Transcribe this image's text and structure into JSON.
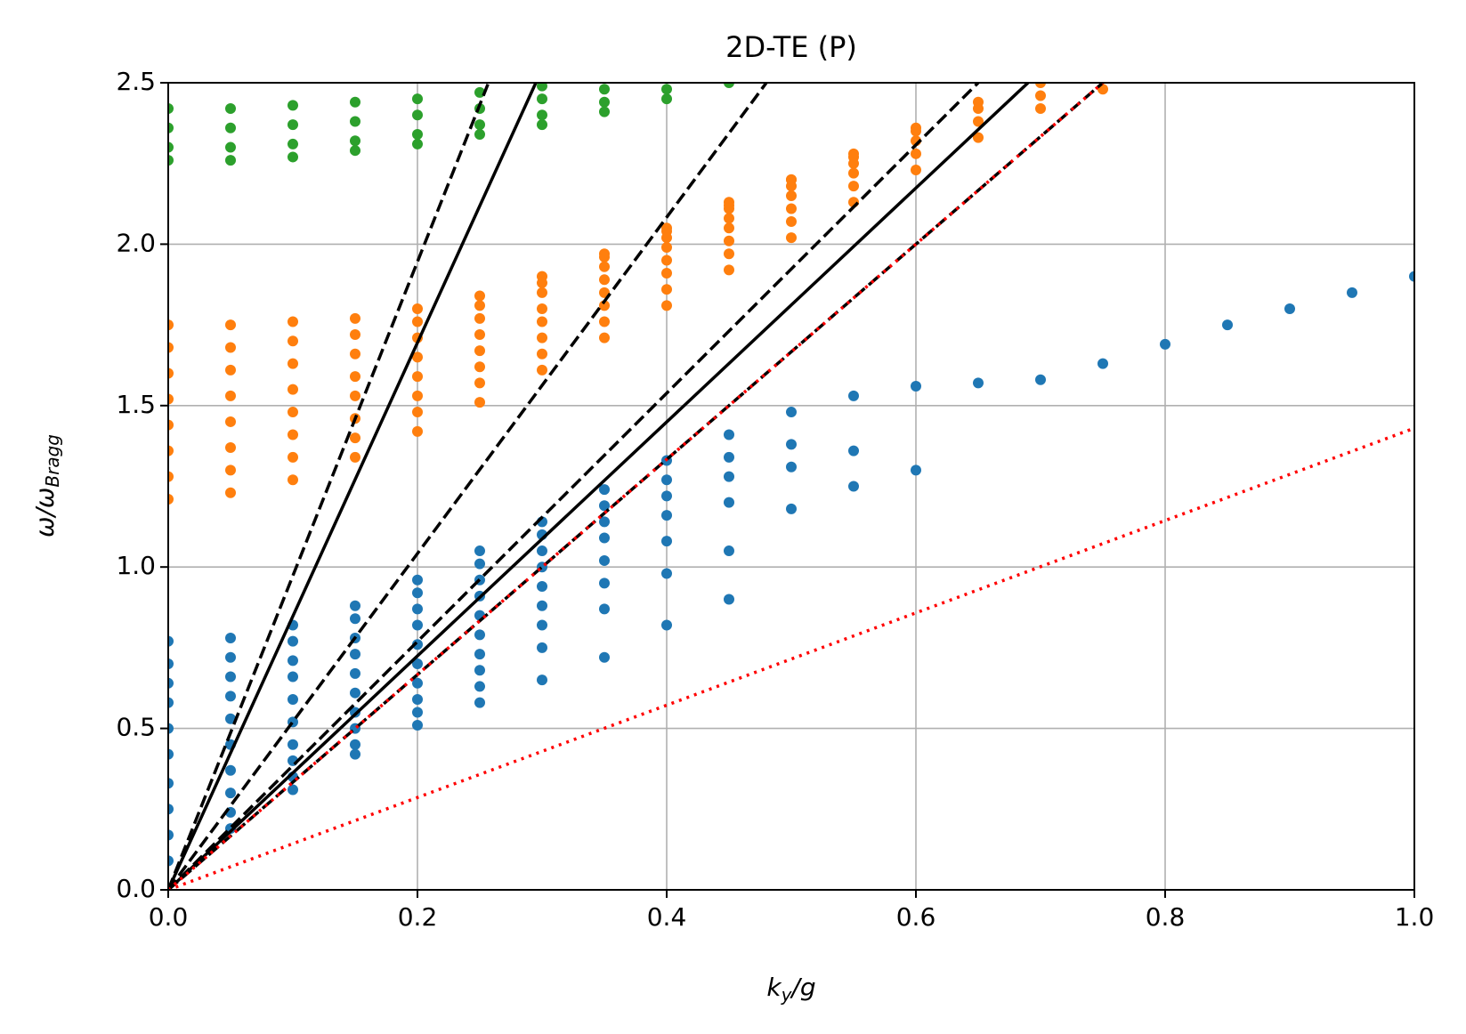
{
  "chart_data": {
    "type": "scatter",
    "title": "2D-TE (P)",
    "xlabel": [
      "k",
      "y",
      "/g"
    ],
    "ylabel": [
      "ω/ω",
      "Bragg"
    ],
    "xlim": [
      0,
      1
    ],
    "ylim": [
      0,
      2.5
    ],
    "xticks": [
      {
        "value": 0,
        "label": "0.0"
      },
      0.2,
      0.4,
      0.6,
      0.8,
      {
        "value": 1,
        "label": "1.0"
      }
    ],
    "yticks": [
      {
        "value": 0,
        "label": "0.0"
      },
      0.5,
      {
        "value": 1,
        "label": "1.0"
      },
      1.5,
      {
        "value": 2,
        "label": "2.0"
      },
      2.5
    ],
    "grid": true,
    "series": [
      {
        "type": "scatter",
        "color": "#1f77b4",
        "x": [
          0,
          0.05,
          0.1,
          0.15,
          0.2,
          0.25,
          0.3,
          0.35,
          0.4,
          0.45,
          0.5,
          0.55,
          0.6,
          0.65,
          0.7,
          0.75,
          0.8,
          0.85,
          0.9,
          0.95,
          1.0
        ],
        "values": [
          0.77,
          0.78,
          0.82,
          0.88,
          0.96,
          1.05,
          1.14,
          1.24,
          1.33,
          1.41,
          1.48,
          1.53,
          1.56,
          1.57,
          1.58,
          1.63,
          1.69,
          1.75,
          1.8,
          1.85,
          1.9
        ]
      },
      {
        "type": "scatter",
        "color": "#1f77b4",
        "x": [
          0,
          0.05,
          0.1,
          0.15,
          0.2,
          0.25,
          0.3,
          0.35,
          0.4,
          0.45,
          0.5,
          0.55,
          0.6
        ],
        "values": [
          0.7,
          0.72,
          0.77,
          0.84,
          0.92,
          1.01,
          1.1,
          1.19,
          1.27,
          1.34,
          1.38,
          1.36,
          1.3
        ]
      },
      {
        "type": "scatter",
        "color": "#1f77b4",
        "x": [
          0,
          0.05,
          0.1,
          0.15,
          0.2,
          0.25,
          0.3,
          0.35,
          0.4,
          0.45,
          0.5,
          0.55
        ],
        "values": [
          0.64,
          0.66,
          0.71,
          0.78,
          0.87,
          0.96,
          1.05,
          1.14,
          1.22,
          1.28,
          1.31,
          1.25
        ]
      },
      {
        "type": "scatter",
        "color": "#1f77b4",
        "x": [
          0,
          0.05,
          0.1,
          0.15,
          0.2,
          0.25,
          0.3,
          0.35,
          0.4,
          0.45,
          0.5
        ],
        "values": [
          0.58,
          0.6,
          0.66,
          0.73,
          0.82,
          0.91,
          1.0,
          1.09,
          1.16,
          1.2,
          1.18
        ]
      },
      {
        "type": "scatter",
        "color": "#1f77b4",
        "x": [
          0,
          0.05,
          0.1,
          0.15,
          0.2,
          0.25,
          0.3,
          0.35,
          0.4,
          0.45
        ],
        "values": [
          0.5,
          0.53,
          0.59,
          0.67,
          0.76,
          0.85,
          0.94,
          1.02,
          1.08,
          1.05
        ]
      },
      {
        "type": "scatter",
        "color": "#1f77b4",
        "x": [
          0,
          0.05,
          0.1,
          0.15,
          0.2,
          0.25,
          0.3,
          0.35,
          0.4,
          0.45
        ],
        "values": [
          0.42,
          0.45,
          0.52,
          0.61,
          0.7,
          0.79,
          0.88,
          0.95,
          0.98,
          0.9
        ]
      },
      {
        "type": "scatter",
        "color": "#1f77b4",
        "x": [
          0,
          0.05,
          0.1,
          0.15,
          0.2,
          0.25,
          0.3,
          0.35,
          0.4
        ],
        "values": [
          0.33,
          0.37,
          0.45,
          0.55,
          0.64,
          0.73,
          0.82,
          0.87,
          0.82
        ]
      },
      {
        "type": "scatter",
        "color": "#1f77b4",
        "x": [
          0,
          0.05,
          0.1,
          0.15,
          0.2,
          0.25,
          0.3,
          0.35
        ],
        "values": [
          0.25,
          0.3,
          0.4,
          0.5,
          0.59,
          0.68,
          0.75,
          0.72
        ]
      },
      {
        "type": "scatter",
        "color": "#1f77b4",
        "x": [
          0,
          0.05,
          0.1,
          0.15,
          0.2,
          0.25,
          0.3
        ],
        "values": [
          0.17,
          0.24,
          0.35,
          0.45,
          0.55,
          0.63,
          0.65
        ]
      },
      {
        "type": "scatter",
        "color": "#1f77b4",
        "x": [
          0,
          0.05,
          0.1,
          0.15,
          0.2,
          0.25
        ],
        "values": [
          0.09,
          0.19,
          0.31,
          0.42,
          0.51,
          0.58
        ]
      },
      {
        "type": "scatter",
        "color": "#ff7f0e",
        "x": [
          0,
          0.05,
          0.1,
          0.15,
          0.2,
          0.25,
          0.3,
          0.35,
          0.4,
          0.45
        ],
        "values": [
          1.75,
          1.75,
          1.76,
          1.77,
          1.8,
          1.84,
          1.9,
          1.97,
          2.05,
          2.13
        ]
      },
      {
        "type": "scatter",
        "color": "#ff7f0e",
        "x": [
          0,
          0.05,
          0.1,
          0.15,
          0.2,
          0.25,
          0.3,
          0.35,
          0.4,
          0.45,
          0.5
        ],
        "values": [
          1.68,
          1.68,
          1.7,
          1.72,
          1.76,
          1.81,
          1.88,
          1.96,
          2.04,
          2.12,
          2.2
        ]
      },
      {
        "type": "scatter",
        "color": "#ff7f0e",
        "x": [
          0,
          0.05,
          0.1,
          0.15,
          0.2,
          0.25,
          0.3,
          0.35,
          0.4,
          0.45,
          0.5,
          0.55
        ],
        "values": [
          1.6,
          1.61,
          1.63,
          1.66,
          1.71,
          1.77,
          1.85,
          1.93,
          2.02,
          2.11,
          2.2,
          2.28
        ]
      },
      {
        "type": "scatter",
        "color": "#ff7f0e",
        "x": [
          0,
          0.05,
          0.1,
          0.15,
          0.2,
          0.25,
          0.3,
          0.35,
          0.4,
          0.45,
          0.5,
          0.55,
          0.6
        ],
        "values": [
          1.52,
          1.53,
          1.55,
          1.59,
          1.65,
          1.72,
          1.8,
          1.89,
          1.99,
          2.08,
          2.18,
          2.27,
          2.36
        ]
      },
      {
        "type": "scatter",
        "color": "#ff7f0e",
        "x": [
          0,
          0.05,
          0.1,
          0.15,
          0.2,
          0.25,
          0.3,
          0.35,
          0.4,
          0.45,
          0.5,
          0.55,
          0.6,
          0.65
        ],
        "values": [
          1.44,
          1.45,
          1.48,
          1.53,
          1.59,
          1.67,
          1.76,
          1.85,
          1.95,
          2.05,
          2.15,
          2.25,
          2.35,
          2.44
        ]
      },
      {
        "type": "scatter",
        "color": "#ff7f0e",
        "x": [
          0,
          0.05,
          0.1,
          0.15,
          0.2,
          0.25,
          0.3,
          0.35,
          0.4,
          0.45,
          0.5,
          0.55,
          0.6,
          0.65,
          0.7
        ],
        "values": [
          1.36,
          1.37,
          1.41,
          1.46,
          1.53,
          1.62,
          1.71,
          1.81,
          1.91,
          2.01,
          2.11,
          2.22,
          2.32,
          2.42,
          2.5
        ]
      },
      {
        "type": "scatter",
        "color": "#ff7f0e",
        "x": [
          0,
          0.05,
          0.1,
          0.15,
          0.2,
          0.25,
          0.3,
          0.35,
          0.4,
          0.45,
          0.5,
          0.55,
          0.6,
          0.65,
          0.7
        ],
        "values": [
          1.28,
          1.3,
          1.34,
          1.4,
          1.48,
          1.57,
          1.66,
          1.76,
          1.86,
          1.97,
          2.07,
          2.18,
          2.28,
          2.38,
          2.46
        ]
      },
      {
        "type": "scatter",
        "color": "#ff7f0e",
        "x": [
          0,
          0.05,
          0.1,
          0.15,
          0.2,
          0.25,
          0.3,
          0.35,
          0.4,
          0.45,
          0.5,
          0.55,
          0.6,
          0.65,
          0.7,
          0.75
        ],
        "values": [
          1.21,
          1.23,
          1.27,
          1.34,
          1.42,
          1.51,
          1.61,
          1.71,
          1.81,
          1.92,
          2.02,
          2.13,
          2.23,
          2.33,
          2.42,
          2.48
        ]
      },
      {
        "type": "scatter",
        "color": "#2ca02c",
        "x": [
          0,
          0.05,
          0.1,
          0.15,
          0.2,
          0.25,
          0.3
        ],
        "values": [
          2.42,
          2.42,
          2.43,
          2.44,
          2.45,
          2.47,
          2.49
        ]
      },
      {
        "type": "scatter",
        "color": "#2ca02c",
        "x": [
          0,
          0.05,
          0.1,
          0.15,
          0.2,
          0.25,
          0.3,
          0.35
        ],
        "values": [
          2.36,
          2.36,
          2.37,
          2.38,
          2.4,
          2.42,
          2.45,
          2.48
        ]
      },
      {
        "type": "scatter",
        "color": "#2ca02c",
        "x": [
          0,
          0.05,
          0.1,
          0.15,
          0.2,
          0.25,
          0.3,
          0.35,
          0.4
        ],
        "values": [
          2.3,
          2.3,
          2.31,
          2.32,
          2.34,
          2.37,
          2.4,
          2.44,
          2.48
        ]
      },
      {
        "type": "scatter",
        "color": "#2ca02c",
        "x": [
          0,
          0.05,
          0.1,
          0.15,
          0.2,
          0.25,
          0.3,
          0.35,
          0.4,
          0.45
        ],
        "values": [
          2.26,
          2.26,
          2.27,
          2.29,
          2.31,
          2.34,
          2.37,
          2.41,
          2.45,
          2.5
        ]
      },
      {
        "type": "line",
        "color": "#000000",
        "dash": "dashed",
        "x": [
          0,
          0.257
        ],
        "values": [
          0,
          2.5
        ]
      },
      {
        "type": "line",
        "color": "#000000",
        "dash": "solid",
        "x": [
          0,
          0.295
        ],
        "values": [
          0,
          2.5
        ]
      },
      {
        "type": "line",
        "color": "#000000",
        "dash": "dashed",
        "x": [
          0,
          0.48
        ],
        "values": [
          0,
          2.5
        ]
      },
      {
        "type": "line",
        "color": "#000000",
        "dash": "dashed",
        "x": [
          0,
          0.65
        ],
        "values": [
          0,
          2.5
        ]
      },
      {
        "type": "line",
        "color": "#000000",
        "dash": "solid",
        "x": [
          0,
          0.69
        ],
        "values": [
          0,
          2.5
        ]
      },
      {
        "type": "line",
        "color": "#000000",
        "dash": "dashed",
        "x": [
          0,
          0.75
        ],
        "values": [
          0,
          2.5
        ]
      },
      {
        "type": "line",
        "color": "#ff0000",
        "dash": "dotted",
        "x": [
          0,
          0.75
        ],
        "values": [
          0,
          2.5
        ]
      },
      {
        "type": "line",
        "color": "#ff0000",
        "dash": "dotted",
        "x": [
          0,
          1
        ],
        "values": [
          0,
          1.43
        ]
      }
    ]
  }
}
